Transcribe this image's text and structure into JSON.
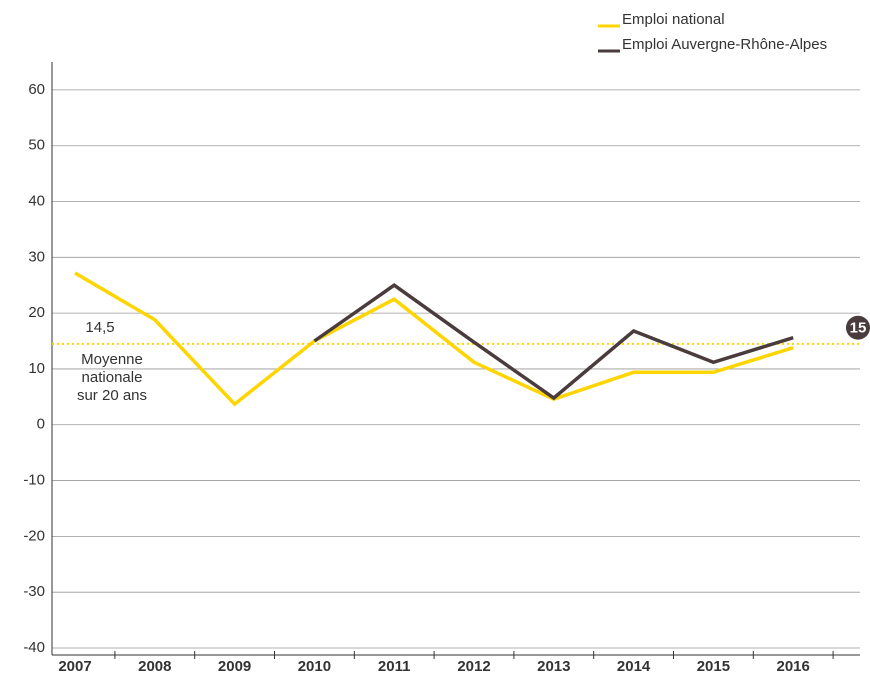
{
  "chart_data": {
    "type": "line",
    "categories": [
      "2007",
      "2008",
      "2009",
      "2010",
      "2011",
      "2012",
      "2013",
      "2014",
      "2015",
      "2016"
    ],
    "series": [
      {
        "name": "Emploi national",
        "color": "#ffd500",
        "values": [
          27.2,
          18.8,
          3.7,
          15,
          22.5,
          11.2,
          4.6,
          9.4,
          9.4,
          13.8
        ]
      },
      {
        "name": "Emploi Auvergne-Rhône-Alpes",
        "color": "#4a3c3c",
        "values": [
          null,
          null,
          null,
          15,
          25,
          14.8,
          4.8,
          16.8,
          11.2,
          15.6
        ]
      }
    ],
    "ylim": [
      -40,
      65
    ],
    "yticks": [
      -40,
      -30,
      -20,
      -10,
      0,
      10,
      20,
      30,
      40,
      50,
      60
    ],
    "grid": true,
    "reference": {
      "value": 14.5,
      "label": "14,5",
      "note": [
        "Moyenne",
        "nationale",
        "sur 20 ans"
      ],
      "color": "#ffd500"
    },
    "end_label": "15",
    "legend": "top-right"
  }
}
